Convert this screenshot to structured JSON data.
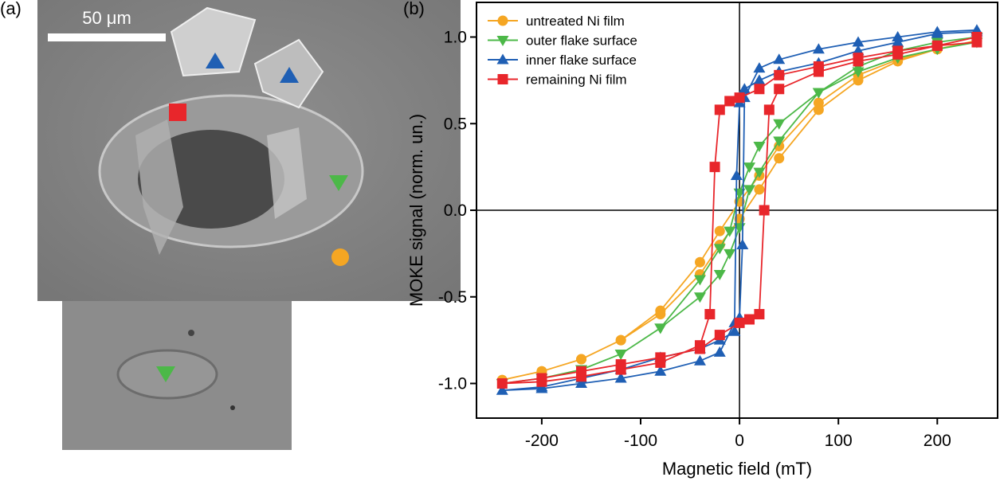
{
  "panel_labels": [
    "(a)",
    "(b)"
  ],
  "scale_bar": "50 μm",
  "chart_data": {
    "type": "line",
    "xlabel": "Magnetic field (mT)",
    "ylabel": "MOKE signal (norm. un.)",
    "xlim": [
      -266,
      261
    ],
    "ylim": [
      -1.2,
      1.2
    ],
    "xticks": [
      -200,
      -100,
      0,
      100,
      200
    ],
    "yticks": [
      {
        "value": -1.0,
        "label": "-1.0"
      },
      -0.5,
      {
        "value": 0.0,
        "label": "0.0"
      },
      0.5,
      {
        "value": 1.0,
        "label": "1.0"
      }
    ],
    "legend": "upper left",
    "series": [
      {
        "name": "untreated Ni film",
        "color": "#f5a623",
        "marker": "circle",
        "x": [
          240,
          200,
          160,
          120,
          80,
          40,
          20,
          0,
          -20,
          -40,
          -80,
          -120,
          -160,
          -200,
          -240,
          -200,
          -160,
          -120,
          -80,
          -40,
          -20,
          0,
          20,
          40,
          80,
          120,
          160,
          200,
          240
        ],
        "values": [
          0.98,
          0.93,
          0.87,
          0.78,
          0.62,
          0.37,
          0.2,
          0.05,
          -0.12,
          -0.3,
          -0.58,
          -0.75,
          -0.86,
          -0.93,
          -0.98,
          -0.93,
          -0.86,
          -0.75,
          -0.6,
          -0.37,
          -0.2,
          -0.05,
          0.12,
          0.3,
          0.58,
          0.75,
          0.86,
          0.93,
          0.98
        ]
      },
      {
        "name": "outer flake surface",
        "color": "#4cb848",
        "marker": "triangle-down",
        "x": [
          240,
          200,
          160,
          120,
          80,
          40,
          20,
          10,
          0,
          -10,
          -20,
          -40,
          -80,
          -120,
          -160,
          -200,
          -240,
          -200,
          -160,
          -120,
          -80,
          -40,
          -20,
          -10,
          0,
          10,
          20,
          40,
          80,
          120,
          160,
          200,
          240
        ],
        "values": [
          0.97,
          0.93,
          0.88,
          0.8,
          0.68,
          0.5,
          0.37,
          0.25,
          0.1,
          -0.12,
          -0.22,
          -0.4,
          -0.68,
          -0.83,
          -0.92,
          -0.97,
          -1.0,
          -0.97,
          -0.92,
          -0.83,
          -0.68,
          -0.5,
          -0.37,
          -0.25,
          -0.1,
          0.12,
          0.22,
          0.4,
          0.68,
          0.83,
          0.92,
          0.97,
          1.0
        ]
      },
      {
        "name": "inner flake surface",
        "color": "#1f5fb4",
        "marker": "triangle-up",
        "x": [
          240,
          200,
          160,
          120,
          80,
          40,
          20,
          5,
          0,
          -3,
          -5,
          -20,
          -40,
          -80,
          -120,
          -160,
          -200,
          -240,
          -200,
          -160,
          -120,
          -80,
          -40,
          -20,
          -5,
          0,
          3,
          5,
          20,
          40,
          80,
          120,
          160,
          200,
          240
        ],
        "values": [
          1.03,
          1.02,
          0.97,
          0.92,
          0.85,
          0.8,
          0.75,
          0.7,
          0.62,
          0.2,
          -0.65,
          -0.82,
          -0.87,
          -0.93,
          -0.97,
          -1.0,
          -1.03,
          -1.04,
          -1.02,
          -0.97,
          -0.92,
          -0.85,
          -0.8,
          -0.75,
          -0.7,
          -0.62,
          -0.2,
          0.65,
          0.82,
          0.87,
          0.93,
          0.97,
          1.0,
          1.03,
          1.04
        ]
      },
      {
        "name": "remaining Ni film",
        "color": "#e8262b",
        "marker": "square",
        "x": [
          240,
          200,
          160,
          120,
          80,
          40,
          20,
          0,
          -10,
          -20,
          -25,
          -30,
          -40,
          -80,
          -120,
          -160,
          -200,
          -240,
          -200,
          -160,
          -120,
          -80,
          -40,
          -20,
          0,
          10,
          20,
          25,
          30,
          40,
          80,
          120,
          160,
          200,
          240
        ],
        "values": [
          0.97,
          0.95,
          0.92,
          0.88,
          0.83,
          0.78,
          0.7,
          0.65,
          0.63,
          0.58,
          0.25,
          -0.6,
          -0.78,
          -0.88,
          -0.92,
          -0.96,
          -0.99,
          -1.0,
          -0.97,
          -0.93,
          -0.89,
          -0.85,
          -0.8,
          -0.72,
          -0.65,
          -0.63,
          -0.6,
          0.0,
          0.58,
          0.7,
          0.8,
          0.86,
          0.9,
          0.95,
          1.0
        ]
      }
    ]
  }
}
